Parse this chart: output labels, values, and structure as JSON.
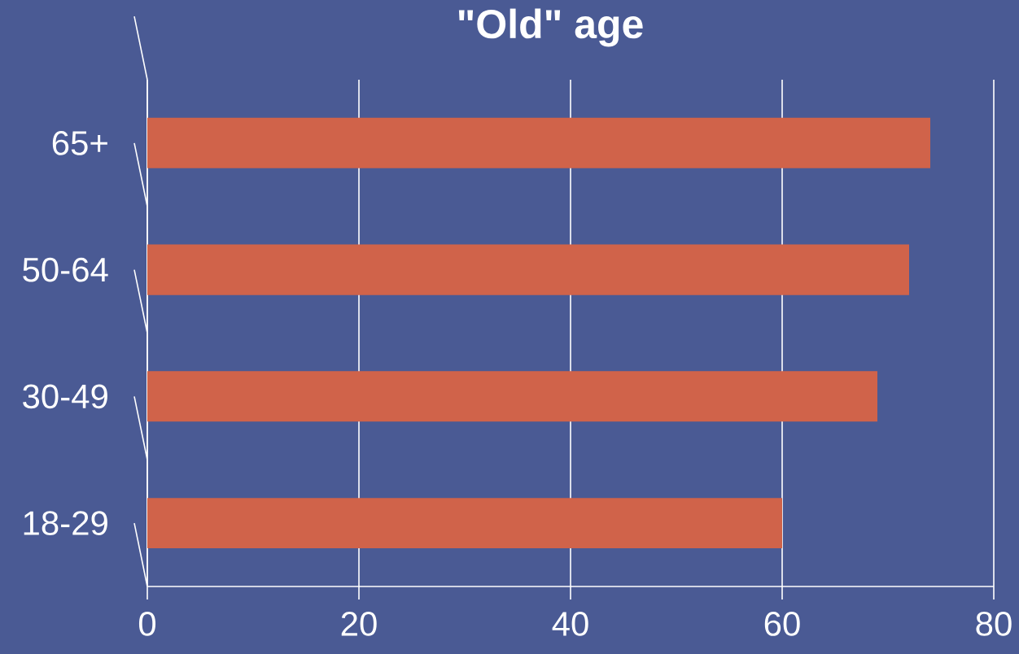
{
  "chart_data": {
    "type": "bar",
    "orientation": "horizontal",
    "title": "\"Old\" age",
    "categories": [
      "65+",
      "50-64",
      "30-49",
      "18-29"
    ],
    "values": [
      74,
      72,
      69,
      60
    ],
    "color": "#d0634a",
    "xlim": [
      0,
      80
    ],
    "xticks": [
      0,
      20,
      40,
      60,
      80
    ],
    "grid": "x"
  }
}
